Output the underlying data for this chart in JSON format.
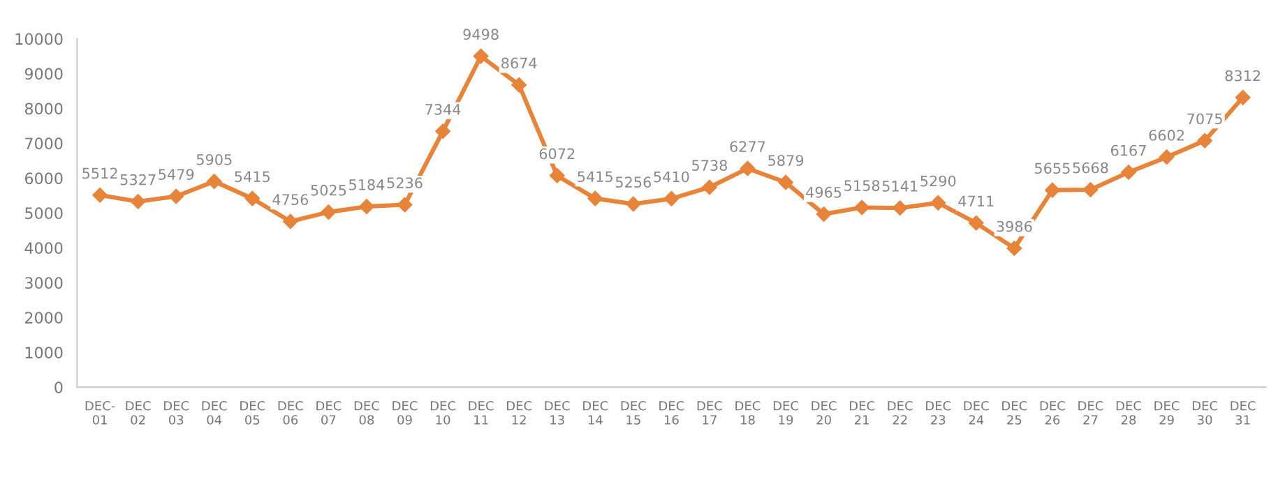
{
  "chart_data": {
    "type": "line",
    "categories": [
      "DEC-\n01",
      "DEC\n02",
      "DEC\n03",
      "DEC\n04",
      "DEC\n05",
      "DEC\n06",
      "DEC\n07",
      "DEC\n08",
      "DEC\n09",
      "DEC\n10",
      "DEC\n11",
      "DEC\n12",
      "DEC\n13",
      "DEC\n14",
      "DEC\n15",
      "DEC\n16",
      "DEC\n17",
      "DEC\n18",
      "DEC\n19",
      "DEC\n20",
      "DEC\n21",
      "DEC\n22",
      "DEC\n23",
      "DEC\n24",
      "DEC\n25",
      "DEC\n26",
      "DEC\n27",
      "DEC\n28",
      "DEC\n29",
      "DEC\n30",
      "DEC\n31"
    ],
    "series": [
      {
        "color": "#e8833a",
        "values": [
          5512,
          5327,
          5479,
          5905,
          5415,
          4756,
          5025,
          5184,
          5236,
          7344,
          9498,
          8674,
          6072,
          5415,
          5256,
          5410,
          5738,
          6277,
          5879,
          4965,
          5158,
          5141,
          5290,
          4711,
          3986,
          5655,
          5668,
          6167,
          6602,
          7075,
          8312
        ]
      }
    ],
    "ylim": [
      0,
      10000
    ],
    "yticks": [
      0,
      1000,
      2000,
      3000,
      4000,
      5000,
      6000,
      7000,
      8000,
      9000,
      10000
    ],
    "data_labels": true,
    "grid": false,
    "legend": false,
    "marker": "diamond",
    "line_style": "solid"
  }
}
